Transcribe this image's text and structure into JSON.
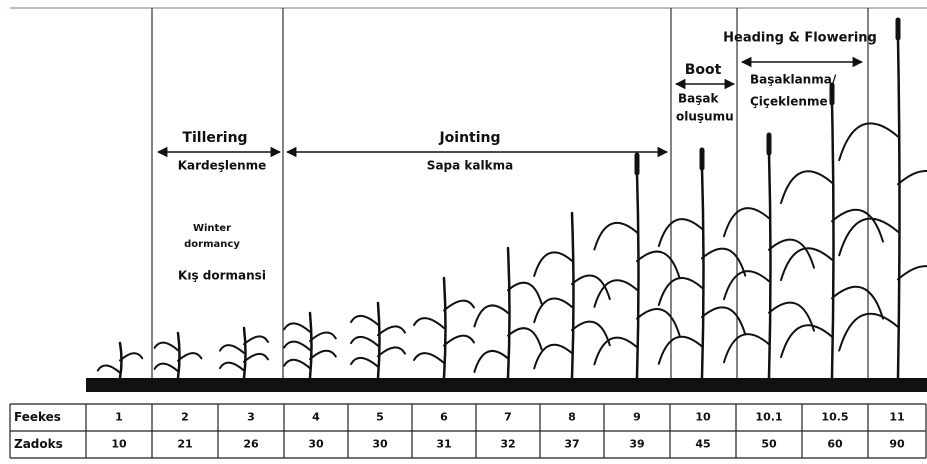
{
  "stages": [
    {
      "name": "Tillering",
      "local": [
        "Kardeşlenme"
      ]
    },
    {
      "name": "Jointing",
      "local": [
        "Sapa kalkma"
      ]
    },
    {
      "name": "Boot",
      "local": [
        "Başak",
        "oluşumu"
      ]
    },
    {
      "name": "Heading & Flowering",
      "local": [
        "Başaklanma/",
        "Çiçeklenme"
      ]
    }
  ],
  "dormancy": {
    "name": [
      "Winter",
      "dormancy"
    ],
    "local": "Kış dormansi"
  },
  "table": {
    "rows": [
      {
        "label": "Feekes",
        "cells": [
          "1",
          "2",
          "3",
          "4",
          "5",
          "6",
          "7",
          "8",
          "9",
          "10",
          "10.1",
          "10.5",
          "11"
        ]
      },
      {
        "label": "Zadoks",
        "cells": [
          "10",
          "21",
          "26",
          "30",
          "30",
          "31",
          "32",
          "37",
          "39",
          "45",
          "50",
          "60",
          "90"
        ]
      }
    ]
  }
}
